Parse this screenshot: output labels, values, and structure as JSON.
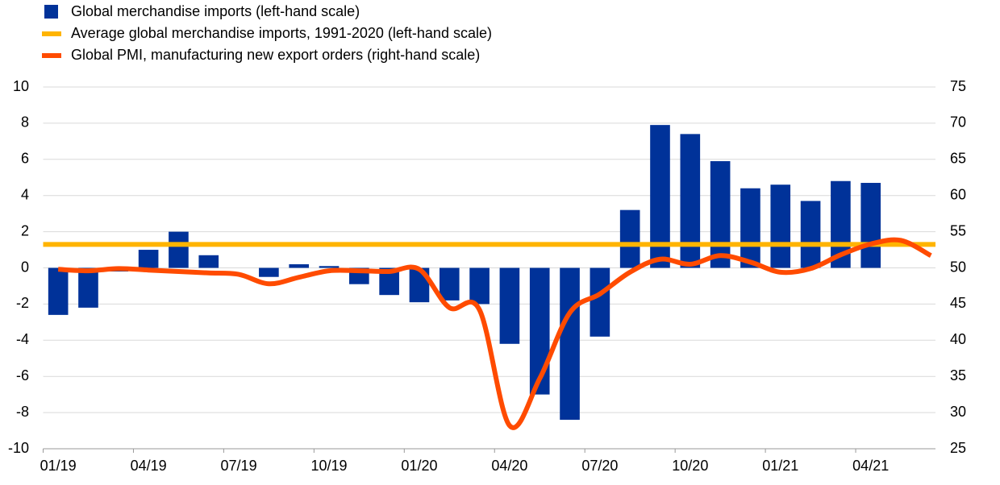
{
  "chart_data": {
    "type": "bar-line",
    "categories": [
      "01/19",
      null,
      null,
      "04/19",
      null,
      null,
      "07/19",
      null,
      null,
      "10/19",
      null,
      null,
      "01/20",
      null,
      null,
      "04/20",
      null,
      null,
      "07/20",
      null,
      null,
      "10/20",
      null,
      null,
      "01/21",
      null,
      null,
      "04/21",
      null,
      null
    ],
    "series": [
      {
        "name": "Global merchandise imports (left-hand scale)",
        "type": "bar",
        "color": "#003299",
        "values": [
          -2.6,
          -2.2,
          -0.2,
          1.0,
          2.0,
          0.7,
          0.0,
          -0.5,
          0.2,
          0.1,
          -0.9,
          -1.5,
          -1.9,
          -1.8,
          -2.0,
          -4.2,
          -7.0,
          -8.4,
          -3.8,
          3.2,
          7.9,
          7.4,
          5.9,
          4.4,
          4.6,
          3.7,
          4.8,
          4.7,
          null,
          null
        ]
      },
      {
        "name": "Average global merchandise imports, 1991-2020 (left-hand scale)",
        "type": "hline",
        "color": "#ffb400",
        "value": 1.3
      },
      {
        "name": "Global PMI, manufacturing new export orders (right-hand scale)",
        "type": "line",
        "axis": "y2",
        "color": "#ff4b00",
        "values": [
          49.8,
          49.6,
          49.9,
          49.7,
          49.5,
          49.3,
          49.1,
          47.8,
          48.7,
          49.6,
          49.6,
          49.5,
          49.8,
          44.5,
          44.2,
          28.2,
          34.7,
          43.8,
          46.4,
          49.4,
          51.2,
          50.5,
          51.7,
          50.8,
          49.4,
          49.9,
          51.8,
          53.3,
          53.8,
          51.7
        ]
      }
    ],
    "ylim": [
      -10,
      10
    ],
    "yticks": [
      -10,
      -8,
      -6,
      -4,
      -2,
      0,
      2,
      4,
      6,
      8,
      10
    ],
    "y2lim": [
      25,
      75
    ],
    "y2ticks": [
      25,
      30,
      35,
      40,
      45,
      50,
      55,
      60,
      65,
      70,
      75
    ],
    "grid": true,
    "legend": "top-left"
  }
}
